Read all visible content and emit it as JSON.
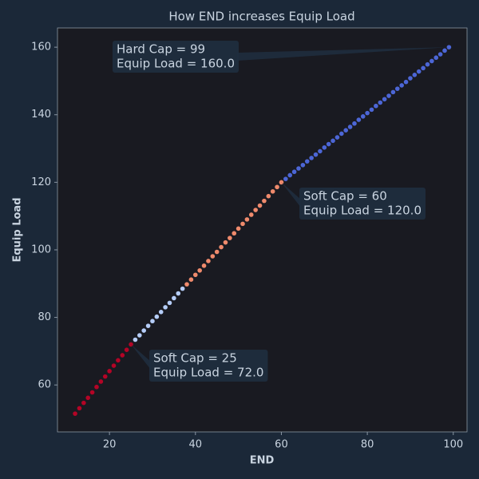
{
  "chart_data": {
    "type": "scatter",
    "title": "How END increases Equip Load",
    "x_label": "END",
    "y_label": "Equip Load",
    "xlim": [
      7.9,
      103.2
    ],
    "ylim": [
      46.1,
      165.7
    ],
    "xticks": [
      20,
      40,
      60,
      80,
      100
    ],
    "yticks": [
      60,
      80,
      100,
      120,
      140,
      160
    ],
    "series": [
      {
        "color": "#b40426",
        "x": [
          12,
          13,
          14,
          15,
          16,
          17,
          18,
          19,
          20,
          21,
          22,
          23,
          24,
          25
        ],
        "values": [
          51.5,
          53.1,
          54.7,
          56.2,
          57.8,
          59.4,
          61.0,
          62.5,
          64.1,
          65.7,
          67.3,
          68.8,
          70.4,
          72.0
        ]
      },
      {
        "color": "#b5cdf8",
        "x": [
          26,
          27,
          28,
          29,
          30,
          31,
          32,
          33,
          34,
          35,
          36,
          37
        ],
        "values": [
          73.4,
          74.7,
          76.1,
          77.5,
          78.9,
          80.2,
          81.6,
          83.0,
          84.3,
          85.7,
          87.1,
          88.5
        ]
      },
      {
        "color": "#ef8a6c",
        "x": [
          38,
          39,
          40,
          41,
          42,
          43,
          44,
          45,
          46,
          47,
          48,
          49,
          50,
          51,
          52,
          53,
          54,
          55,
          56,
          57,
          58,
          59,
          60
        ],
        "values": [
          89.8,
          91.2,
          92.6,
          93.9,
          95.3,
          96.7,
          98.1,
          99.4,
          100.8,
          102.2,
          103.5,
          104.9,
          106.3,
          107.7,
          109.0,
          110.4,
          111.8,
          113.1,
          114.5,
          115.9,
          117.3,
          118.6,
          120.0
        ]
      },
      {
        "color": "#4c66d6",
        "x": [
          61,
          62,
          63,
          64,
          65,
          66,
          67,
          68,
          69,
          70,
          71,
          72,
          73,
          74,
          75,
          76,
          77,
          78,
          79,
          80,
          81,
          82,
          83,
          84,
          85,
          86,
          87,
          88,
          89,
          90,
          91,
          92,
          93,
          94,
          95,
          96,
          97,
          98,
          99
        ],
        "values": [
          121.0,
          122.1,
          123.1,
          124.1,
          125.1,
          126.2,
          127.2,
          128.2,
          129.2,
          130.3,
          131.3,
          132.3,
          133.3,
          134.4,
          135.4,
          136.4,
          137.4,
          138.5,
          139.5,
          140.5,
          141.5,
          142.6,
          143.6,
          144.6,
          145.6,
          146.7,
          147.7,
          148.7,
          149.7,
          150.8,
          151.8,
          152.8,
          153.8,
          154.9,
          155.9,
          156.9,
          157.9,
          159.0,
          160.0
        ]
      }
    ],
    "annotations": [
      {
        "lines": [
          "Soft Cap = 25",
          "Equip Load = 72.0"
        ],
        "xy": [
          25,
          72.0
        ]
      },
      {
        "lines": [
          "Soft Cap = 60",
          "Equip Load = 120.0"
        ],
        "xy": [
          60,
          120.0
        ]
      },
      {
        "lines": [
          "Hard Cap = 99",
          "Equip Load = 160.0"
        ],
        "xy": [
          99,
          160.0
        ]
      }
    ]
  }
}
